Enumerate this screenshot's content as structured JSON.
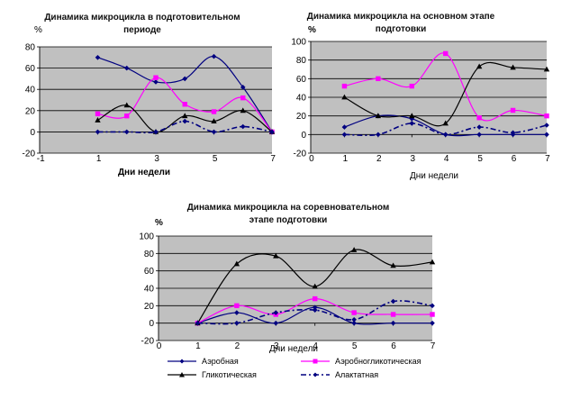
{
  "colors": {
    "plot_bg": "#c0c0c0",
    "grid": "#000000",
    "aerobic": "#000080",
    "aerobic_glycolytic": "#ff00ff",
    "glycolytic": "#000000",
    "alactic": "#000080"
  },
  "legend": {
    "aerobic": "Аэробная",
    "aerobic_glycolytic": "Аэробногликотическая",
    "glycolytic": "Гликотическая",
    "alactic": "Алактатная"
  },
  "chart_data": [
    {
      "type": "line",
      "title_lines": [
        "Динамика микроцикла в подготовительном",
        "периоде"
      ],
      "ylabel": "%",
      "xlabel": "Дни недели",
      "xlim": [
        -1,
        7
      ],
      "ylim": [
        -20,
        80
      ],
      "x_ticks": [
        "-1",
        "1",
        "3",
        "5",
        "7"
      ],
      "y_ticks": [
        "-20",
        "0",
        "20",
        "40",
        "60",
        "80"
      ],
      "x": [
        1,
        2,
        3,
        4,
        5,
        6,
        7
      ],
      "series": [
        {
          "key": "aerobic",
          "name": "Аэробная",
          "values": [
            70,
            60,
            47,
            50,
            71,
            42,
            0
          ]
        },
        {
          "key": "aerobic_glycolytic",
          "name": "Аэробногликотическая",
          "values": [
            17,
            15,
            51,
            26,
            19,
            32,
            0
          ]
        },
        {
          "key": "glycolytic",
          "name": "Гликотическая",
          "values": [
            11,
            25,
            0,
            15,
            10,
            20,
            0
          ]
        },
        {
          "key": "alactic",
          "name": "Алактатная",
          "values": [
            0,
            0,
            0,
            10,
            0,
            5,
            0
          ]
        }
      ]
    },
    {
      "type": "line",
      "title_lines": [
        "Динамика микроцикла на основном этапе",
        "подготовки"
      ],
      "ylabel": "%",
      "xlabel": "Дни недели",
      "xlim": [
        0,
        7
      ],
      "ylim": [
        -20,
        100
      ],
      "x_ticks": [
        "0",
        "1",
        "2",
        "3",
        "4",
        "5",
        "6",
        "7"
      ],
      "y_ticks": [
        "-20",
        "0",
        "20",
        "40",
        "60",
        "80",
        "100"
      ],
      "x": [
        1,
        2,
        3,
        4,
        5,
        6,
        7
      ],
      "series": [
        {
          "key": "aerobic",
          "name": "Аэробная",
          "values": [
            8,
            20,
            17,
            0,
            0,
            0,
            0
          ]
        },
        {
          "key": "aerobic_glycolytic",
          "name": "Аэробногликотическая",
          "values": [
            52,
            60,
            52,
            87,
            18,
            26,
            20
          ]
        },
        {
          "key": "glycolytic",
          "name": "Гликотическая",
          "values": [
            40,
            20,
            20,
            12,
            73,
            72,
            70
          ]
        },
        {
          "key": "alactic",
          "name": "Алактатная",
          "values": [
            0,
            0,
            12,
            0,
            8,
            2,
            10
          ]
        }
      ]
    },
    {
      "type": "line",
      "title_lines": [
        "Динамика микроцикла на соревновательном",
        "этапе подготовки"
      ],
      "ylabel": "%",
      "xlabel": "Дни недели",
      "xlim": [
        0,
        7
      ],
      "ylim": [
        -20,
        100
      ],
      "x_ticks": [
        "0",
        "1",
        "2",
        "3",
        "4",
        "5",
        "6",
        "7"
      ],
      "y_ticks": [
        "-20",
        "0",
        "20",
        "40",
        "60",
        "80",
        "100"
      ],
      "x": [
        1,
        2,
        3,
        4,
        5,
        6,
        7
      ],
      "series": [
        {
          "key": "aerobic",
          "name": "Аэробная",
          "values": [
            0,
            12,
            0,
            18,
            0,
            0,
            0
          ]
        },
        {
          "key": "aerobic_glycolytic",
          "name": "Аэробногликотическая",
          "values": [
            0,
            20,
            10,
            28,
            12,
            10,
            10
          ]
        },
        {
          "key": "glycolytic",
          "name": "Гликотическая",
          "values": [
            0,
            68,
            77,
            42,
            84,
            66,
            70
          ]
        },
        {
          "key": "alactic",
          "name": "Алактатная",
          "values": [
            0,
            0,
            12,
            15,
            4,
            25,
            20
          ]
        }
      ]
    }
  ]
}
